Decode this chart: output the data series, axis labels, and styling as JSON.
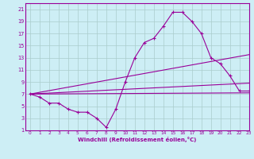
{
  "bg_color": "#cdeef5",
  "grid_color": "#aacccc",
  "line_color": "#990099",
  "xlabel": "Windchill (Refroidissement éolien,°C)",
  "xlim": [
    -0.5,
    23
  ],
  "ylim": [
    1,
    22
  ],
  "xticks": [
    0,
    1,
    2,
    3,
    4,
    5,
    6,
    7,
    8,
    9,
    10,
    11,
    12,
    13,
    14,
    15,
    16,
    17,
    18,
    19,
    20,
    21,
    22,
    23
  ],
  "yticks": [
    1,
    3,
    5,
    7,
    9,
    11,
    13,
    15,
    17,
    19,
    21
  ],
  "curve_x": [
    0,
    1,
    2,
    3,
    4,
    5,
    6,
    7,
    8,
    9,
    10,
    11,
    12,
    13,
    14,
    15,
    16,
    17,
    18,
    19,
    20,
    21,
    22,
    23
  ],
  "curve_y": [
    7.0,
    6.5,
    5.5,
    5.5,
    4.5,
    4.0,
    4.0,
    3.0,
    1.5,
    4.5,
    9.0,
    13.0,
    15.5,
    16.2,
    18.2,
    20.5,
    20.5,
    19.0,
    17.0,
    13.0,
    12.0,
    10.0,
    7.5,
    7.5
  ],
  "line1_x": [
    0,
    23
  ],
  "line1_y": [
    7.0,
    7.2
  ],
  "line2_x": [
    0,
    23
  ],
  "line2_y": [
    7.0,
    8.8
  ],
  "line3_x": [
    0,
    23
  ],
  "line3_y": [
    7.0,
    13.5
  ]
}
